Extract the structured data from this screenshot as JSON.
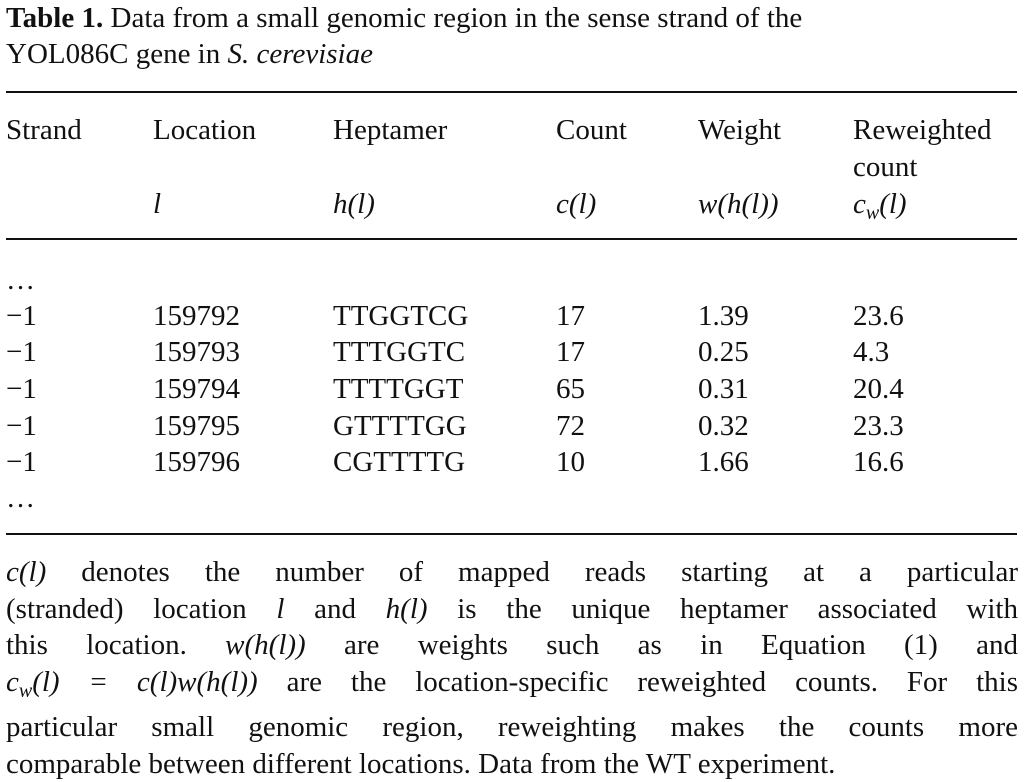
{
  "caption": {
    "label": "Table 1.",
    "text": "Data from a small genomic region in the sense strand of the",
    "text2": "YOL086C gene in",
    "species": "S. cerevisiae"
  },
  "table": {
    "headers": [
      {
        "name": "Strand",
        "symbol": ""
      },
      {
        "name": "Location",
        "symbol": "l"
      },
      {
        "name": "Heptamer",
        "symbol": "h(l)"
      },
      {
        "name": "Count",
        "symbol": "c(l)"
      },
      {
        "name": "Weight",
        "symbol": "w(h(l))"
      },
      {
        "name": "Reweighted",
        "name2": "count",
        "symbol_base": "c",
        "symbol_sub": "w",
        "symbol_rest": "(l)"
      }
    ],
    "ellipsis": "…",
    "rows": [
      {
        "strand": "−1",
        "location": "159792",
        "heptamer": "TTGGTCG",
        "count": "17",
        "weight": "1.39",
        "reweighted": "23.6"
      },
      {
        "strand": "−1",
        "location": "159793",
        "heptamer": "TTTGGTC",
        "count": "17",
        "weight": "0.25",
        "reweighted": "4.3"
      },
      {
        "strand": "−1",
        "location": "159794",
        "heptamer": "TTTTGGT",
        "count": "65",
        "weight": "0.31",
        "reweighted": "20.4"
      },
      {
        "strand": "−1",
        "location": "159795",
        "heptamer": "GTTTTGG",
        "count": "72",
        "weight": "0.32",
        "reweighted": "23.3"
      },
      {
        "strand": "−1",
        "location": "159796",
        "heptamer": "CGTTTTG",
        "count": "10",
        "weight": "1.66",
        "reweighted": "16.6"
      }
    ]
  },
  "footnote": {
    "l1_a": "c(l)",
    "l1_b": " denotes the number of mapped reads starting at a particular",
    "l2_a": "(stranded) location ",
    "l2_b": "l",
    "l2_c": " and ",
    "l2_d": "h(l)",
    "l2_e": " is the unique heptamer associated with",
    "l3_a": "this location. ",
    "l3_b": "w(h(l))",
    "l3_c": " are weights such as in Equation (1) and",
    "l4_a": "c",
    "l4_sub": "w",
    "l4_b": "(l) = c(l)w(h(l))",
    "l4_c": " are the location-specific reweighted counts. For this",
    "l5": "particular small genomic region, reweighting makes the counts more",
    "l6": "comparable between different locations. Data from the WT experiment."
  }
}
